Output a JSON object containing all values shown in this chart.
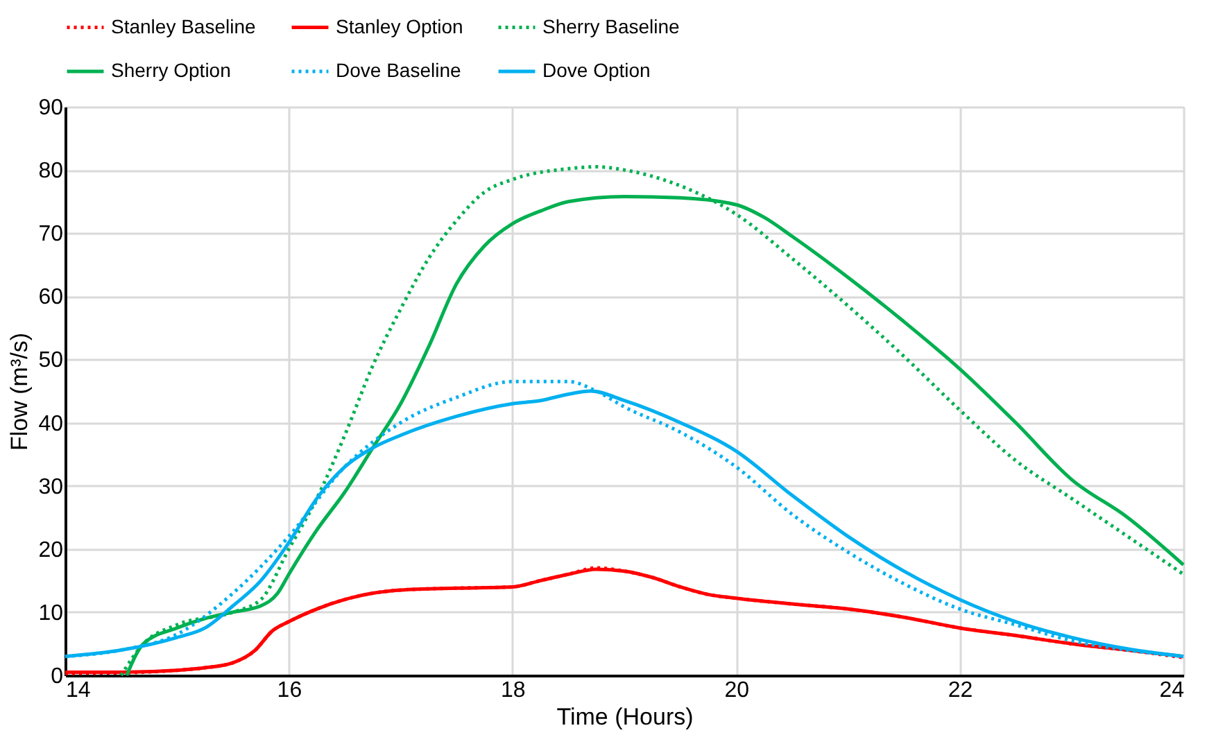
{
  "chart_data": {
    "type": "line",
    "xlabel": "Time (Hours)",
    "ylabel": "Flow (m³/s)",
    "xlim": [
      14,
      24
    ],
    "xticks": [
      14,
      16,
      18,
      20,
      22,
      24
    ],
    "ylim": [
      0,
      90
    ],
    "yticks": [
      0,
      10,
      20,
      30,
      40,
      50,
      60,
      70,
      80,
      90
    ],
    "grid": true,
    "legend": "top",
    "marker": "none",
    "series": [
      {
        "name": "Stanley Baseline",
        "color": "#ff0000",
        "line_style": "dotted",
        "x": [
          14,
          14.5,
          15,
          15.25,
          15.5,
          15.7,
          15.85,
          16,
          16.25,
          16.5,
          16.75,
          17,
          17.5,
          18,
          18.25,
          18.5,
          18.75,
          19,
          19.25,
          19.5,
          19.75,
          20,
          20.5,
          21,
          21.5,
          22,
          22.5,
          23,
          23.5,
          24
        ],
        "values": [
          0.3,
          0.4,
          0.8,
          1.2,
          2,
          4,
          7,
          8.5,
          10.5,
          12,
          13,
          13.5,
          13.8,
          14,
          15,
          16,
          17,
          16.5,
          15.5,
          14,
          12.8,
          12.2,
          11.3,
          10.5,
          9.2,
          7.5,
          6.3,
          5,
          4,
          2.8
        ]
      },
      {
        "name": "Stanley Option",
        "color": "#ff0000",
        "line_style": "solid",
        "x": [
          14,
          14.5,
          15,
          15.25,
          15.5,
          15.7,
          15.85,
          16,
          16.25,
          16.5,
          16.75,
          17,
          17.5,
          18,
          18.25,
          18.5,
          18.75,
          19,
          19.25,
          19.5,
          19.75,
          20,
          20.5,
          21,
          21.5,
          22,
          22.5,
          23,
          23.5,
          24
        ],
        "values": [
          0.5,
          0.5,
          0.8,
          1.2,
          2,
          4,
          7,
          8.5,
          10.5,
          12,
          13,
          13.5,
          13.8,
          14,
          15,
          16,
          16.8,
          16.5,
          15.5,
          14,
          12.8,
          12.2,
          11.3,
          10.5,
          9.2,
          7.5,
          6.3,
          5,
          4,
          3
        ]
      },
      {
        "name": "Sherry Baseline",
        "color": "#00b050",
        "line_style": "dotted",
        "x": [
          14.5,
          14.7,
          15,
          15.5,
          15.75,
          16,
          16.25,
          16.5,
          16.75,
          17,
          17.25,
          17.5,
          17.75,
          18,
          18.5,
          18.75,
          19,
          19.5,
          20,
          20.5,
          21,
          21.5,
          22,
          22.5,
          23,
          23.5,
          24
        ],
        "values": [
          0,
          5,
          8,
          10,
          12,
          20,
          28,
          38,
          49,
          58,
          66,
          72,
          76.5,
          78.5,
          80.2,
          80.5,
          80,
          77.5,
          73,
          66,
          58.5,
          50.5,
          42,
          34,
          28,
          22,
          16
        ]
      },
      {
        "name": "Sherry Option",
        "color": "#00b050",
        "line_style": "solid",
        "x": [
          14.55,
          14.7,
          15,
          15.25,
          15.5,
          15.75,
          15.9,
          16,
          16.25,
          16.5,
          16.75,
          17,
          17.25,
          17.5,
          17.75,
          18,
          18.25,
          18.5,
          19,
          19.5,
          20,
          20.25,
          20.5,
          21,
          21.5,
          22,
          22.5,
          23,
          23.5,
          24
        ],
        "values": [
          0,
          5,
          7.5,
          9,
          10,
          11,
          13,
          16,
          23,
          29,
          36,
          43,
          52,
          62,
          68,
          71.5,
          73.5,
          75,
          75.8,
          75.6,
          74.5,
          72.5,
          69.5,
          63,
          56,
          48.5,
          40,
          31,
          25,
          17.5
        ]
      },
      {
        "name": "Dove Baseline",
        "color": "#00b0f0",
        "line_style": "dotted",
        "x": [
          14,
          14.5,
          15,
          15.5,
          16,
          16.5,
          17,
          17.5,
          18,
          18.5,
          18.75,
          19,
          19.5,
          20,
          20.5,
          21,
          21.5,
          22,
          22.5,
          23,
          23.5,
          24
        ],
        "values": [
          3,
          4,
          6.5,
          13,
          22,
          33,
          40,
          44,
          46.5,
          46.5,
          45,
          42.5,
          38.5,
          33,
          25.5,
          19.5,
          14.5,
          10.5,
          8,
          5.5,
          4,
          3
        ]
      },
      {
        "name": "Dove Option",
        "color": "#00b0f0",
        "line_style": "solid",
        "x": [
          14,
          14.5,
          15,
          15.25,
          15.5,
          15.75,
          16,
          16.25,
          16.5,
          16.75,
          17,
          17.5,
          18,
          18.25,
          18.5,
          18.7,
          19,
          19.5,
          20,
          20.5,
          21,
          21.5,
          22,
          22.5,
          23,
          23.5,
          24
        ],
        "values": [
          3,
          4,
          6,
          7.5,
          11,
          15,
          21,
          28,
          33,
          36,
          38,
          41,
          43,
          43.5,
          44.5,
          45,
          43.5,
          40,
          35.5,
          28.5,
          22,
          16.5,
          12,
          8.5,
          6,
          4.2,
          3
        ]
      }
    ]
  }
}
